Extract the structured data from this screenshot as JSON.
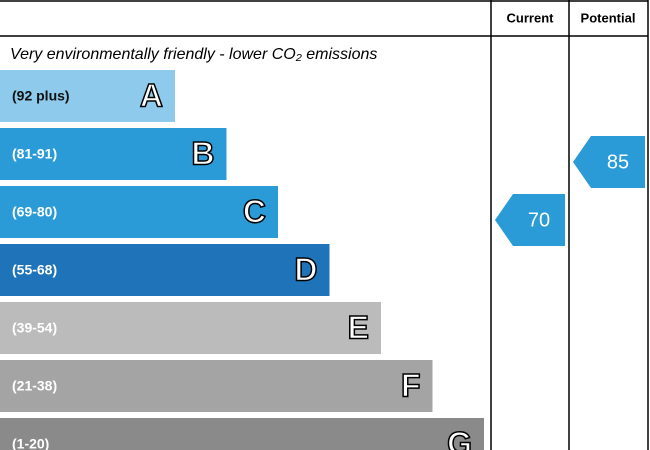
{
  "header": {
    "current": "Current",
    "potential": "Potential"
  },
  "subtitle": "Very environmentally friendly - lower CO₂ emissions",
  "bands": [
    {
      "range": "(92 plus)",
      "letter": "A",
      "color": "#8ecaec"
    },
    {
      "range": "(81-91)",
      "letter": "B",
      "color": "#2b9bd8"
    },
    {
      "range": "(69-80)",
      "letter": "C",
      "color": "#2b9bd8"
    },
    {
      "range": "(55-68)",
      "letter": "D",
      "color": "#1f74b9"
    },
    {
      "range": "(39-54)",
      "letter": "E",
      "color": "#bbbbbb"
    },
    {
      "range": "(21-38)",
      "letter": "F",
      "color": "#a4a4a4"
    },
    {
      "range": "(1-20)",
      "letter": "G",
      "color": "#8a8a8a"
    }
  ],
  "current": {
    "value": 70
  },
  "potential": {
    "value": 85
  }
}
